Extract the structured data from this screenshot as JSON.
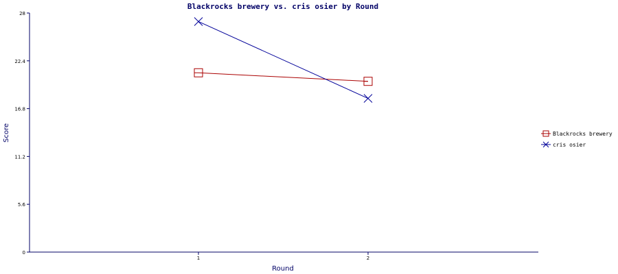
{
  "chart_data": {
    "type": "line",
    "title": "Blackrocks brewery vs. cris osier by Round",
    "xlabel": "Round",
    "ylabel": "Score",
    "categories": [
      "1",
      "2"
    ],
    "ylim": [
      0,
      28
    ],
    "yticks": [
      "0",
      "5.6",
      "11.2",
      "16.8",
      "22.4",
      "28"
    ],
    "grid": false,
    "legend_position": "right",
    "series": [
      {
        "name": "Blackrocks brewery",
        "values": [
          21.0,
          20.0
        ],
        "color": "#aa0000",
        "marker": "square"
      },
      {
        "name": "cris osier",
        "values": [
          27.0,
          18.0
        ],
        "color": "#000099",
        "marker": "x"
      }
    ]
  },
  "colors": {
    "axis": "#000066",
    "text": "#000066"
  }
}
